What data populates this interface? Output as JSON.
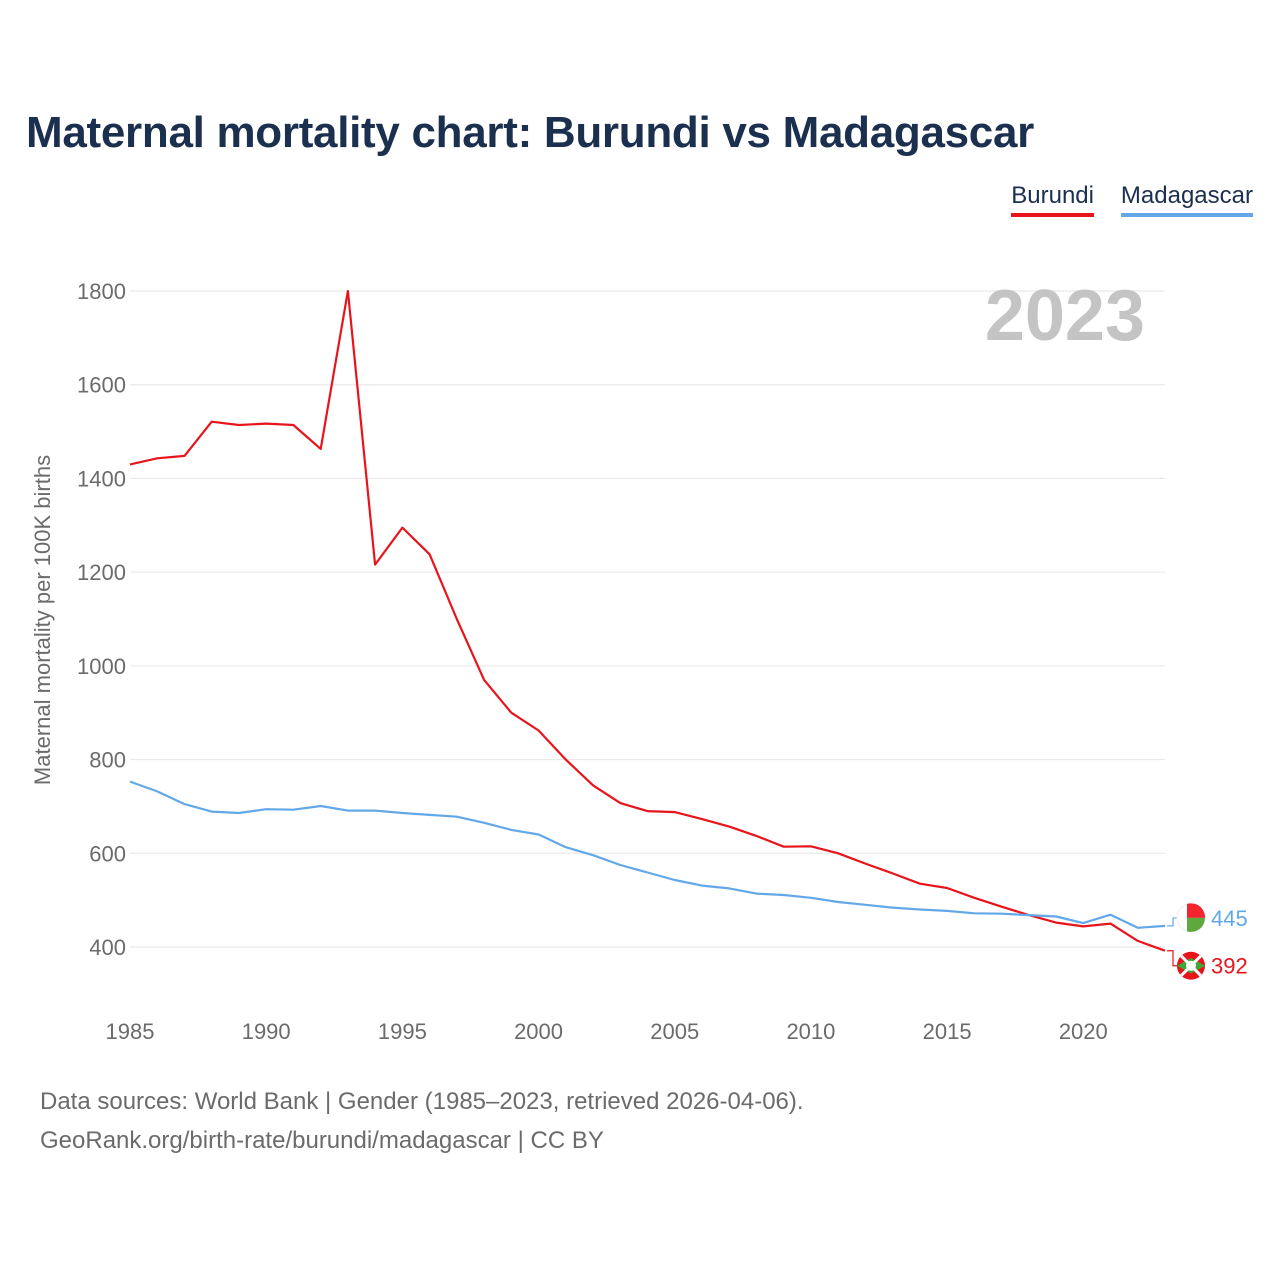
{
  "title": "Maternal mortality chart: Burundi vs Madagascar",
  "legend": {
    "burundi": "Burundi",
    "madagascar": "Madagascar"
  },
  "year_label": "2023",
  "sources": {
    "line1": "Data sources: World Bank | Gender (1985–2023, retrieved 2026-04-06).",
    "line2": "GeoRank.org/birth-rate/burundi/madagascar | CC BY"
  },
  "chart_data": {
    "type": "line",
    "title": "Maternal mortality chart: Burundi vs Madagascar",
    "ylabel": "Maternal mortality per 100K births",
    "xlabel": "",
    "xlim": [
      1985,
      2023
    ],
    "ylim": [
      300,
      1800
    ],
    "yticks": [
      400,
      600,
      800,
      1000,
      1200,
      1400,
      1600,
      1800
    ],
    "xticks": [
      1985,
      1990,
      1995,
      2000,
      2005,
      2010,
      2015,
      2020
    ],
    "grid": true,
    "x": [
      1985,
      1986,
      1987,
      1988,
      1989,
      1990,
      1991,
      1992,
      1993,
      1994,
      1995,
      1996,
      1997,
      1998,
      1999,
      2000,
      2001,
      2002,
      2003,
      2004,
      2005,
      2006,
      2007,
      2008,
      2009,
      2010,
      2011,
      2012,
      2013,
      2014,
      2015,
      2016,
      2017,
      2018,
      2019,
      2020,
      2021,
      2022,
      2023
    ],
    "series": [
      {
        "name": "Burundi",
        "color": "#e8141c",
        "end_label": "392",
        "values": [
          1430,
          1443,
          1448,
          1521,
          1514,
          1517,
          1514,
          1463,
          1800,
          1216,
          1295,
          1238,
          1100,
          970,
          900,
          862,
          800,
          745,
          707,
          690,
          688,
          673,
          657,
          637,
          614,
          615,
          600,
          578,
          557,
          535,
          526,
          505,
          486,
          468,
          452,
          444,
          450,
          413,
          392
        ]
      },
      {
        "name": "Madagascar",
        "color": "#62a8e8",
        "end_label": "445",
        "values": [
          753,
          732,
          705,
          689,
          686,
          694,
          693,
          701,
          691,
          691,
          686,
          682,
          678,
          665,
          650,
          640,
          613,
          596,
          575,
          559,
          543,
          531,
          525,
          514,
          511,
          505,
          496,
          490,
          484,
          480,
          477,
          472,
          471,
          468,
          465,
          451,
          469,
          441,
          445
        ]
      }
    ]
  }
}
